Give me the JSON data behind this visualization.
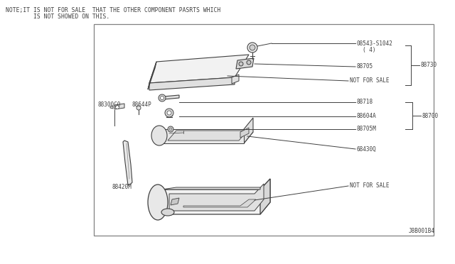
{
  "bg_color": "#ffffff",
  "border_color": "#808080",
  "line_color": "#404040",
  "text_color": "#404040",
  "note_line1": "NOTE;IT IS NOT FOR SALE  THAT THE OTHER COMPONENT PASRTS WHICH",
  "note_line2": "        IS NOT SHOWED ON THIS.",
  "diagram_id": "J8B001B4"
}
